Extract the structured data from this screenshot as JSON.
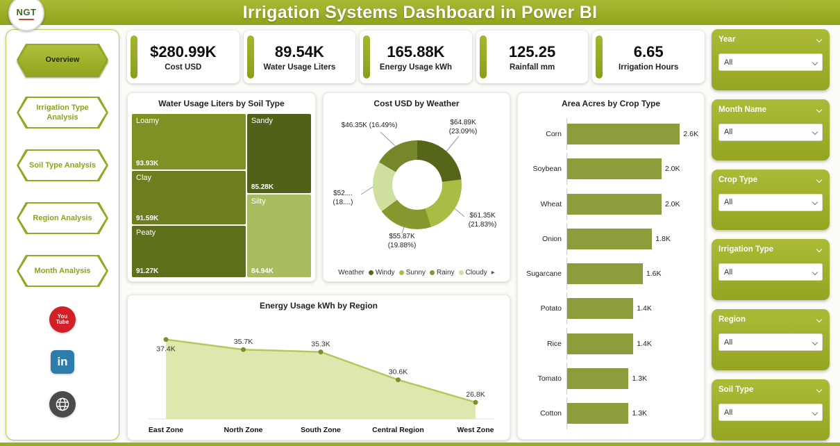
{
  "header": {
    "title": "Irrigation Systems Dashboard in Power BI",
    "logo_text": "NGT"
  },
  "nav": {
    "items": [
      {
        "label": "Overview",
        "active": true
      },
      {
        "label": "Irrigation Type Analysis",
        "active": false
      },
      {
        "label": "Soil Type Analysis",
        "active": false
      },
      {
        "label": "Region Analysis",
        "active": false
      },
      {
        "label": "Month Analysis",
        "active": false
      }
    ],
    "social": {
      "youtube_line1": "You",
      "youtube_line2": "Tube",
      "linkedin": "in"
    }
  },
  "kpis": [
    {
      "value": "$280.99K",
      "label": "Cost USD"
    },
    {
      "value": "89.54K",
      "label": "Water Usage Liters"
    },
    {
      "value": "165.88K",
      "label": "Energy Usage kWh"
    },
    {
      "value": "125.25",
      "label": "Rainfall mm"
    },
    {
      "value": "6.65",
      "label": "Irrigation Hours"
    }
  ],
  "filters": {
    "items": [
      {
        "label": "Year",
        "value": "All"
      },
      {
        "label": "Month Name",
        "value": "All"
      },
      {
        "label": "Crop Type",
        "value": "All"
      },
      {
        "label": "Irrigation Type",
        "value": "All"
      },
      {
        "label": "Region",
        "value": "All"
      },
      {
        "label": "Soil Type",
        "value": "All"
      }
    ]
  },
  "chart_data": [
    {
      "type": "treemap",
      "title": "Water Usage Liters by Soil Type",
      "items": [
        {
          "label": "Loamy",
          "value": "93.93K",
          "numeric": 93.93,
          "color": "#7e9125"
        },
        {
          "label": "Clay",
          "value": "91.59K",
          "numeric": 91.59,
          "color": "#6c7e1e"
        },
        {
          "label": "Peaty",
          "value": "91.27K",
          "numeric": 91.27,
          "color": "#5e7019"
        },
        {
          "label": "Sandy",
          "value": "85.28K",
          "numeric": 85.28,
          "color": "#50621a"
        },
        {
          "label": "Silty",
          "value": "84.94K",
          "numeric": 84.94,
          "color": "#a7bc5f"
        }
      ]
    },
    {
      "type": "pie",
      "donut": true,
      "title": "Cost USD by Weather",
      "legend_title": "Weather",
      "legend_position": "bottom",
      "legend": [
        {
          "label": "Windy",
          "color": "#55661a"
        },
        {
          "label": "Sunny",
          "color": "#a9bd45"
        },
        {
          "label": "Rainy",
          "color": "#87982e"
        },
        {
          "label": "Cloudy",
          "color": "#cfdf9e"
        }
      ],
      "legend_more": "▸",
      "slices": [
        {
          "label": "$64.89K (23.09%)",
          "value": 64.89,
          "pct": 23.09,
          "color": "#55661a"
        },
        {
          "label": "$61.35K (21.83%)",
          "value": 61.35,
          "pct": 21.83,
          "color": "#a9bd45"
        },
        {
          "label": "$55.87K (19.88%)",
          "value": 55.87,
          "pct": 19.88,
          "color": "#87982e"
        },
        {
          "label": "$52.... (18....)",
          "value": 52,
          "pct": 18.71,
          "color": "#cfdf9e"
        },
        {
          "label": "$46.35K (16.49%)",
          "value": 46.35,
          "pct": 16.49,
          "color": "#76862a"
        }
      ]
    },
    {
      "type": "bar",
      "orientation": "horizontal",
      "title": "Area Acres by Crop Type",
      "categories": [
        "Corn",
        "Soybean",
        "Wheat",
        "Onion",
        "Sugarcane",
        "Potato",
        "Rice",
        "Tomato",
        "Cotton"
      ],
      "values": [
        2.6,
        2.0,
        2.0,
        1.8,
        1.6,
        1.4,
        1.4,
        1.3,
        1.3
      ],
      "labels": [
        "2.6K",
        "2.0K",
        "2.0K",
        "1.8K",
        "1.6K",
        "1.4K",
        "1.4K",
        "1.3K",
        "1.3K"
      ],
      "xlim": [
        0,
        2.78
      ],
      "bar_color": "#8c9d3b"
    },
    {
      "type": "area",
      "title": "Energy Usage kWh by Region",
      "categories": [
        "East Zone",
        "North Zone",
        "South Zone",
        "Central Region",
        "West Zone"
      ],
      "values": [
        37.4,
        35.7,
        35.3,
        30.6,
        26.8
      ],
      "labels": [
        "37.4K",
        "35.7K",
        "35.3K",
        "30.6K",
        "26.8K"
      ],
      "ylim": [
        24,
        39
      ],
      "area_color": "#dde8ae",
      "line_color": "#b5c95b",
      "marker_color": "#7e8f2b"
    }
  ],
  "colors": {
    "theme_green": "#9aad27",
    "theme_green_dark": "#8a9d1a",
    "youtube_red": "#d32027",
    "linkedin_blue": "#2e7cab"
  }
}
